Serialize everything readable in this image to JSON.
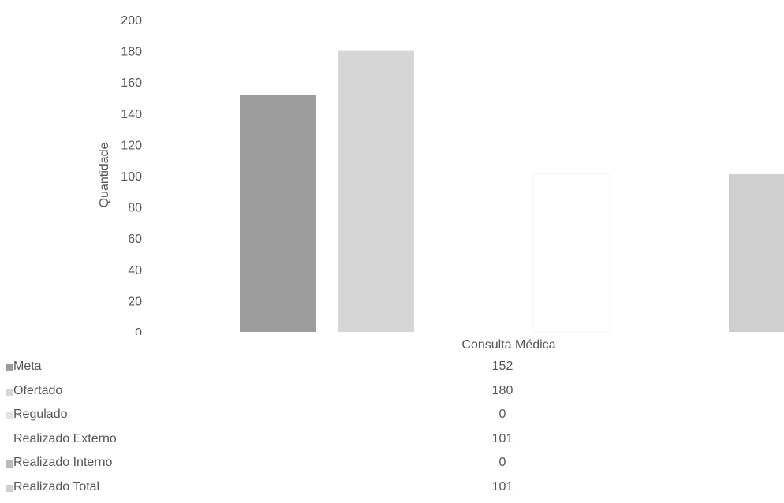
{
  "chart_data": {
    "type": "bar",
    "categories": [
      "Consulta Médica"
    ],
    "series": [
      {
        "name": "Meta",
        "values": [
          152
        ],
        "color": "#9d9d9d"
      },
      {
        "name": "Ofertado",
        "values": [
          180
        ],
        "color": "#d6d6d6"
      },
      {
        "name": "Regulado",
        "values": [
          0
        ],
        "color": "#e3e3e3"
      },
      {
        "name": "Realizado Externo",
        "values": [
          101
        ],
        "color": "#ffffff"
      },
      {
        "name": "Realizado Interno",
        "values": [
          0
        ],
        "color": "#bcbcbc"
      },
      {
        "name": "Realizado Total",
        "values": [
          101
        ],
        "color": "#cfcfcf"
      }
    ],
    "ylabel": "Quantidade",
    "yticks": [
      "0",
      "20",
      "40",
      "60",
      "80",
      "100",
      "120",
      "140",
      "160",
      "180",
      "200"
    ],
    "ylim": [
      0,
      200
    ],
    "grid": false,
    "legend": "data-table-bottom"
  }
}
